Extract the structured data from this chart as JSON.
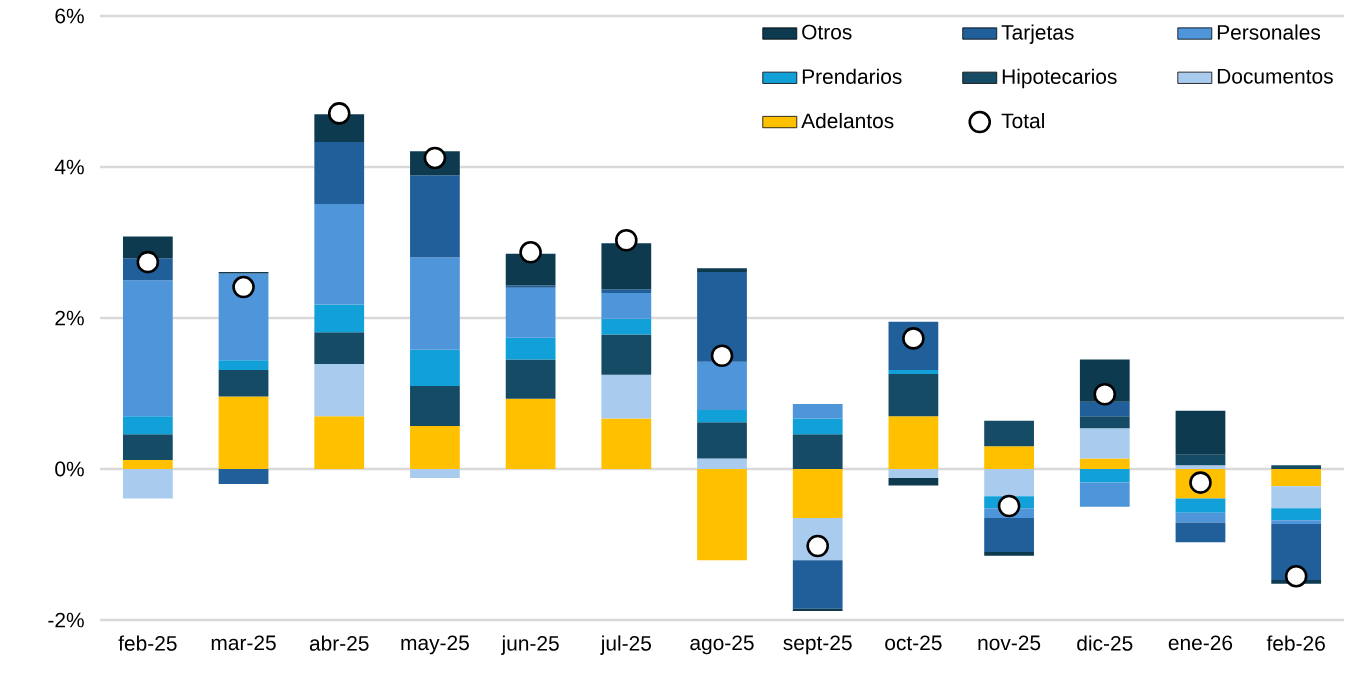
{
  "chart_data": {
    "type": "bar",
    "stacked": true,
    "categories": [
      "feb-25",
      "mar-25",
      "abr-25",
      "may-25",
      "jun-25",
      "jul-25",
      "ago-25",
      "sept-25",
      "oct-25",
      "nov-25",
      "dic-25",
      "ene-26",
      "feb-26"
    ],
    "series": [
      {
        "name": "Adelantos",
        "color": "#ffc000",
        "values": [
          0.12,
          0.96,
          0.7,
          0.57,
          0.93,
          0.67,
          -1.21,
          -0.65,
          0.7,
          0.3,
          0.14,
          -0.39,
          -0.23
        ]
      },
      {
        "name": "Documentos",
        "color": "#a9cbee",
        "values": [
          -0.39,
          0,
          0.69,
          -0.12,
          null,
          0.58,
          0.14,
          -0.56,
          -0.12,
          -0.36,
          0.4,
          0.05,
          -0.29
        ]
      },
      {
        "name": "Hipotecarios",
        "color": "#164b65",
        "values": [
          0.34,
          0.35,
          0.42,
          0.53,
          0.52,
          0.53,
          0.48,
          0.46,
          0.56,
          0.34,
          0.16,
          0.14,
          0.05
        ]
      },
      {
        "name": "Prendarios",
        "color": "#11a0d8",
        "values": [
          0.24,
          0.13,
          0.37,
          0.48,
          0.29,
          0.21,
          0.16,
          0.21,
          0.05,
          -0.16,
          -0.18,
          -0.19,
          -0.16
        ]
      },
      {
        "name": "Personales",
        "color": "#4e95d9",
        "values": [
          1.8,
          1.15,
          1.33,
          1.22,
          0.66,
          0.34,
          0.64,
          0.19,
          0,
          -0.13,
          -0.32,
          -0.13,
          -0.05
        ]
      },
      {
        "name": "Tarjetas",
        "color": "#215f9a",
        "values": [
          0.29,
          -0.2,
          0.82,
          1.09,
          0.03,
          0.05,
          1.19,
          -0.64,
          0.64,
          -0.45,
          0.19,
          -0.26,
          -0.74
        ]
      },
      {
        "name": "Otros",
        "color": "#0e3a4f",
        "values": [
          0.29,
          0.02,
          0.37,
          0.32,
          0.42,
          0.61,
          0.05,
          -0.03,
          -0.1,
          -0.05,
          0.56,
          0.58,
          -0.05
        ]
      },
      {
        "name": "Total",
        "type": "scatter",
        "marker": "circle",
        "color": "#ffffff",
        "values": [
          2.74,
          2.41,
          4.71,
          4.12,
          2.87,
          3.03,
          1.5,
          -1.02,
          1.73,
          -0.49,
          0.99,
          -0.18,
          -1.42
        ]
      }
    ],
    "ylim": [
      -2,
      6
    ],
    "yticks": [
      {
        "value": -2,
        "label": "-2%"
      },
      {
        "value": 0,
        "label": "0%"
      },
      {
        "value": 2,
        "label": "2%"
      },
      {
        "value": 4,
        "label": "4%"
      },
      {
        "value": 6,
        "label": "6%"
      }
    ],
    "grid": "y",
    "legend": "top right"
  }
}
